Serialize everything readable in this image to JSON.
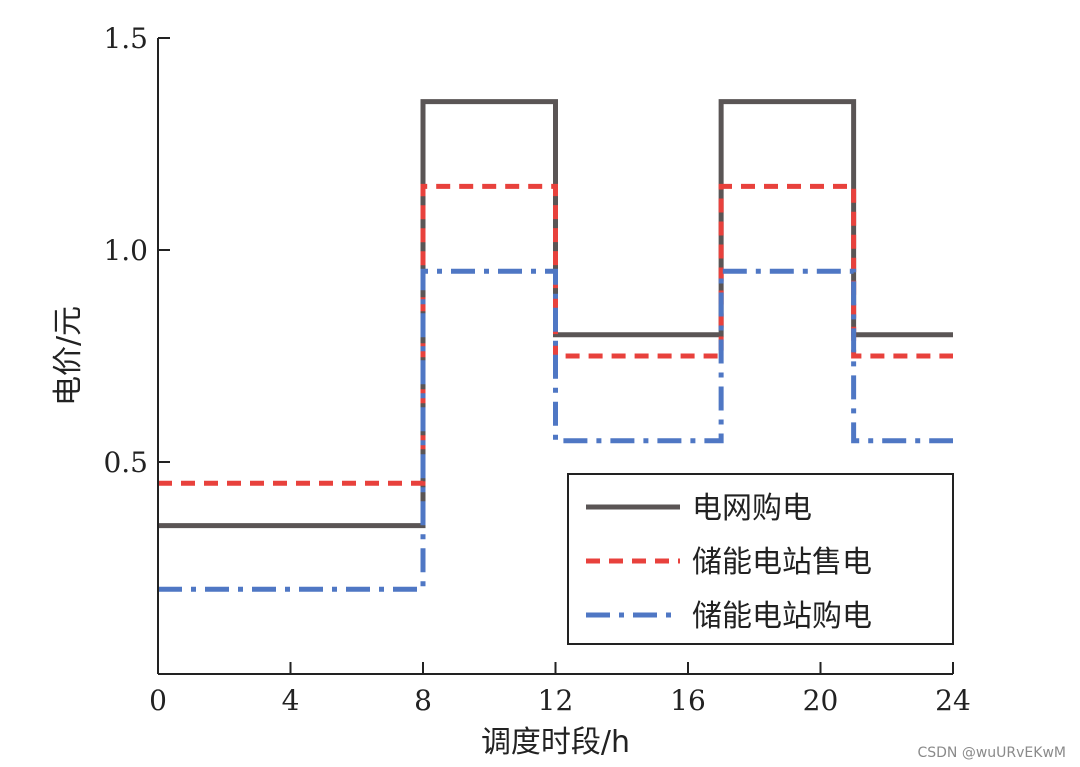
{
  "chart_data": {
    "type": "line",
    "step": true,
    "xlabel": "调度时段/h",
    "ylabel": "电价/元",
    "xlim": [
      0,
      24
    ],
    "ylim": [
      0,
      1.5
    ],
    "xticks": [
      0,
      4,
      8,
      12,
      16,
      20,
      24
    ],
    "xtick_labels": [
      "0",
      "4",
      "8",
      "12",
      "16",
      "20",
      "24"
    ],
    "yticks": [
      0.5,
      1.0,
      1.5
    ],
    "ytick_labels": [
      "0.5",
      "1.0",
      "1.5"
    ],
    "grid": false,
    "legend_position": "lower-right",
    "breakpoints": [
      0,
      8,
      12,
      17,
      21,
      24
    ],
    "series": [
      {
        "name": "电网购电",
        "style": "solid",
        "color": "#5a5555",
        "values": [
          0.35,
          1.35,
          0.8,
          1.35,
          0.8
        ]
      },
      {
        "name": "储能电站售电",
        "style": "dashed",
        "color": "#e8413c",
        "values": [
          0.45,
          1.15,
          0.75,
          1.15,
          0.75
        ]
      },
      {
        "name": "储能电站购电",
        "style": "dashdot",
        "color": "#4f77c4",
        "values": [
          0.2,
          0.95,
          0.55,
          0.95,
          0.55
        ]
      }
    ]
  },
  "watermark": "CSDN @wuURvEKwM"
}
